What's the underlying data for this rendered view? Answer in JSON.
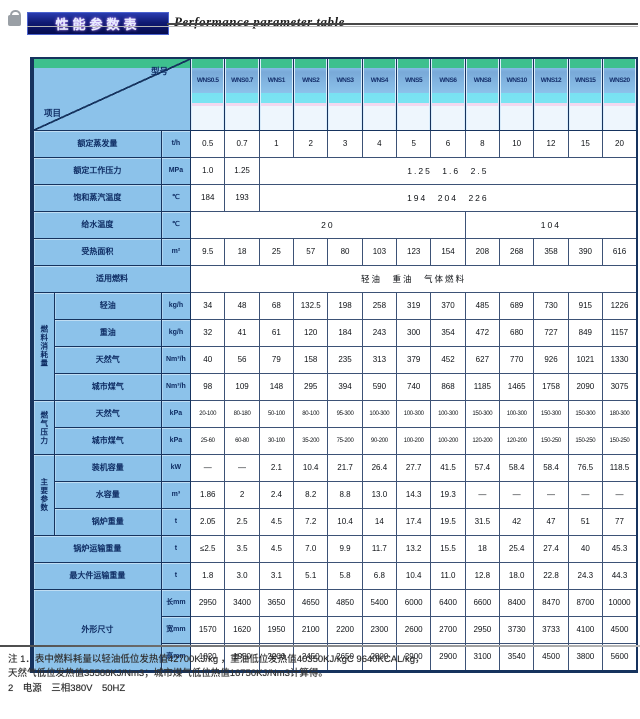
{
  "page": {
    "title_cn": "性能参数表",
    "title_en": "Performance parameter table"
  },
  "colors": {
    "title_navy": "#0a1060",
    "header_green": "#3ec08e",
    "header_blue": "#8cc2ea",
    "header_cyan": "#7ae4f2",
    "header_pink": "#f2d8ef",
    "grid_navy": "#16335e"
  },
  "table": {
    "corner": {
      "top": "型号",
      "bottom": "项目"
    },
    "models": [
      "WNS0.5",
      "WNS0.7",
      "WNS1",
      "WNS2",
      "WNS3",
      "WNS4",
      "WNS5",
      "WNS6",
      "WNS8",
      "WNS10",
      "WNS12",
      "WNS15",
      "WNS20"
    ],
    "rows": [
      {
        "label": "额定蒸发量",
        "unit": "t/h",
        "cells": [
          "0.5",
          "0.7",
          "1",
          "2",
          "3",
          "4",
          "5",
          "6",
          "8",
          "10",
          "12",
          "15",
          "20"
        ]
      },
      {
        "label": "额定工作压力",
        "unit": "MPa",
        "cells": [
          "1.0",
          "1.25",
          {
            "text": "1.25　1.6　2.5",
            "span": 11,
            "merged": true
          }
        ]
      },
      {
        "label": "饱和蒸汽温度",
        "unit": "℃",
        "cells": [
          "184",
          "193",
          {
            "text": "194　204　226",
            "span": 11,
            "merged": true
          }
        ]
      },
      {
        "label": "给水温度",
        "unit": "℃",
        "cells": [
          {
            "text": "20",
            "span": 8,
            "merged": true
          },
          {
            "text": "104",
            "span": 5,
            "merged": true
          }
        ]
      },
      {
        "label": "受热面积",
        "unit": "m²",
        "cells": [
          "9.5",
          "18",
          "25",
          "57",
          "80",
          "103",
          "123",
          "154",
          "208",
          "268",
          "358",
          "390",
          "616"
        ]
      },
      {
        "label": "适用燃料",
        "wide": true,
        "cells": [
          {
            "text": "轻油　重油　气体燃料",
            "span": 13,
            "merged": true
          }
        ]
      },
      {
        "group": {
          "label": "燃料消耗量",
          "rows": 4
        },
        "label": "轻油",
        "unit": "kg/h",
        "cells": [
          "34",
          "48",
          "68",
          "132.5",
          "198",
          "258",
          "319",
          "370",
          "485",
          "689",
          "730",
          "915",
          "1226"
        ]
      },
      {
        "label": "重油",
        "unit": "kg/h",
        "cells": [
          "32",
          "41",
          "61",
          "120",
          "184",
          "243",
          "300",
          "354",
          "472",
          "680",
          "727",
          "849",
          "1157"
        ]
      },
      {
        "label": "天然气",
        "unit": "Nm³/h",
        "cells": [
          "40",
          "56",
          "79",
          "158",
          "235",
          "313",
          "379",
          "452",
          "627",
          "770",
          "926",
          "1021",
          "1330"
        ]
      },
      {
        "label": "城市煤气",
        "unit": "Nm³/h",
        "cells": [
          "98",
          "109",
          "148",
          "295",
          "394",
          "590",
          "740",
          "868",
          "1185",
          "1465",
          "1758",
          "2090",
          "3075"
        ]
      },
      {
        "group": {
          "label": "燃气压力",
          "rows": 2
        },
        "label": "天然气",
        "unit": "kPa",
        "small": true,
        "cells": [
          "20-100",
          "80-180",
          "50-100",
          "80-100",
          "95-300",
          "100-300",
          "100-300",
          "100-300",
          "150-300",
          "100-300",
          "150-300",
          "150-300",
          "180-300"
        ]
      },
      {
        "label": "城市煤气",
        "unit": "kPa",
        "small": true,
        "cells": [
          "25-60",
          "60-80",
          "30-100",
          "35-200",
          "75-200",
          "90-200",
          "100-200",
          "100-200",
          "120-200",
          "120-200",
          "150-250",
          "150-250",
          "150-250"
        ]
      },
      {
        "group": {
          "label": "主要参数",
          "rows": 3
        },
        "label": "装机容量",
        "unit": "kW",
        "cells": [
          "—",
          "—",
          "2.1",
          "10.4",
          "21.7",
          "26.4",
          "27.7",
          "41.5",
          "57.4",
          "58.4",
          "58.4",
          "76.5",
          "118.5"
        ]
      },
      {
        "label": "水容量",
        "unit": "m³",
        "cells": [
          "1.86",
          "2",
          "2.4",
          "8.2",
          "8.8",
          "13.0",
          "14.3",
          "19.3",
          "—",
          "—",
          "—",
          "—",
          "—"
        ]
      },
      {
        "label": "锅炉重量",
        "unit": "t",
        "cells": [
          "2.05",
          "2.5",
          "4.5",
          "7.2",
          "10.4",
          "14",
          "17.4",
          "19.5",
          "31.5",
          "42",
          "47",
          "51",
          "77"
        ]
      },
      {
        "label": "锅炉运输重量",
        "unit": "t",
        "cells": [
          "≤2.5",
          "3.5",
          "4.5",
          "7.0",
          "9.9",
          "11.7",
          "13.2",
          "15.5",
          "18",
          "25.4",
          "27.4",
          "40",
          "45.3"
        ]
      },
      {
        "label": "最大件运输重量",
        "unit": "t",
        "cells": [
          "1.8",
          "3.0",
          "3.1",
          "5.1",
          "5.8",
          "6.8",
          "10.4",
          "11.0",
          "12.8",
          "18.0",
          "22.8",
          "24.3",
          "44.3"
        ]
      },
      {
        "dims": {
          "label": "外形尺寸",
          "rows": 3
        },
        "unit": "长mm",
        "cells": [
          "2950",
          "3400",
          "3650",
          "4650",
          "4850",
          "5400",
          "6000",
          "6400",
          "6600",
          "8400",
          "8470",
          "8700",
          "10000"
        ]
      },
      {
        "unit": "宽mm",
        "cells": [
          "1570",
          "1620",
          "1950",
          "2100",
          "2200",
          "2300",
          "2600",
          "2700",
          "2950",
          "3730",
          "3733",
          "4100",
          "4500"
        ]
      },
      {
        "unit": "高mm",
        "cells": [
          "1820",
          "1950",
          "2200",
          "2450",
          "2650",
          "2800",
          "2900",
          "2900",
          "3100",
          "3540",
          "4500",
          "3800",
          "5600"
        ]
      }
    ]
  },
  "notes": [
    "注 1．表中燃料耗量以轻油低位发热值42700KJ/kg ，重油低位发热值40350KJ/kgC 9640KCAL/kg，",
    "天然气低位发热值35588KJ/Nm3；城市煤气低位热值16750KJ/Nm3计算得。",
    "2　电源　三相380V　50HZ"
  ]
}
